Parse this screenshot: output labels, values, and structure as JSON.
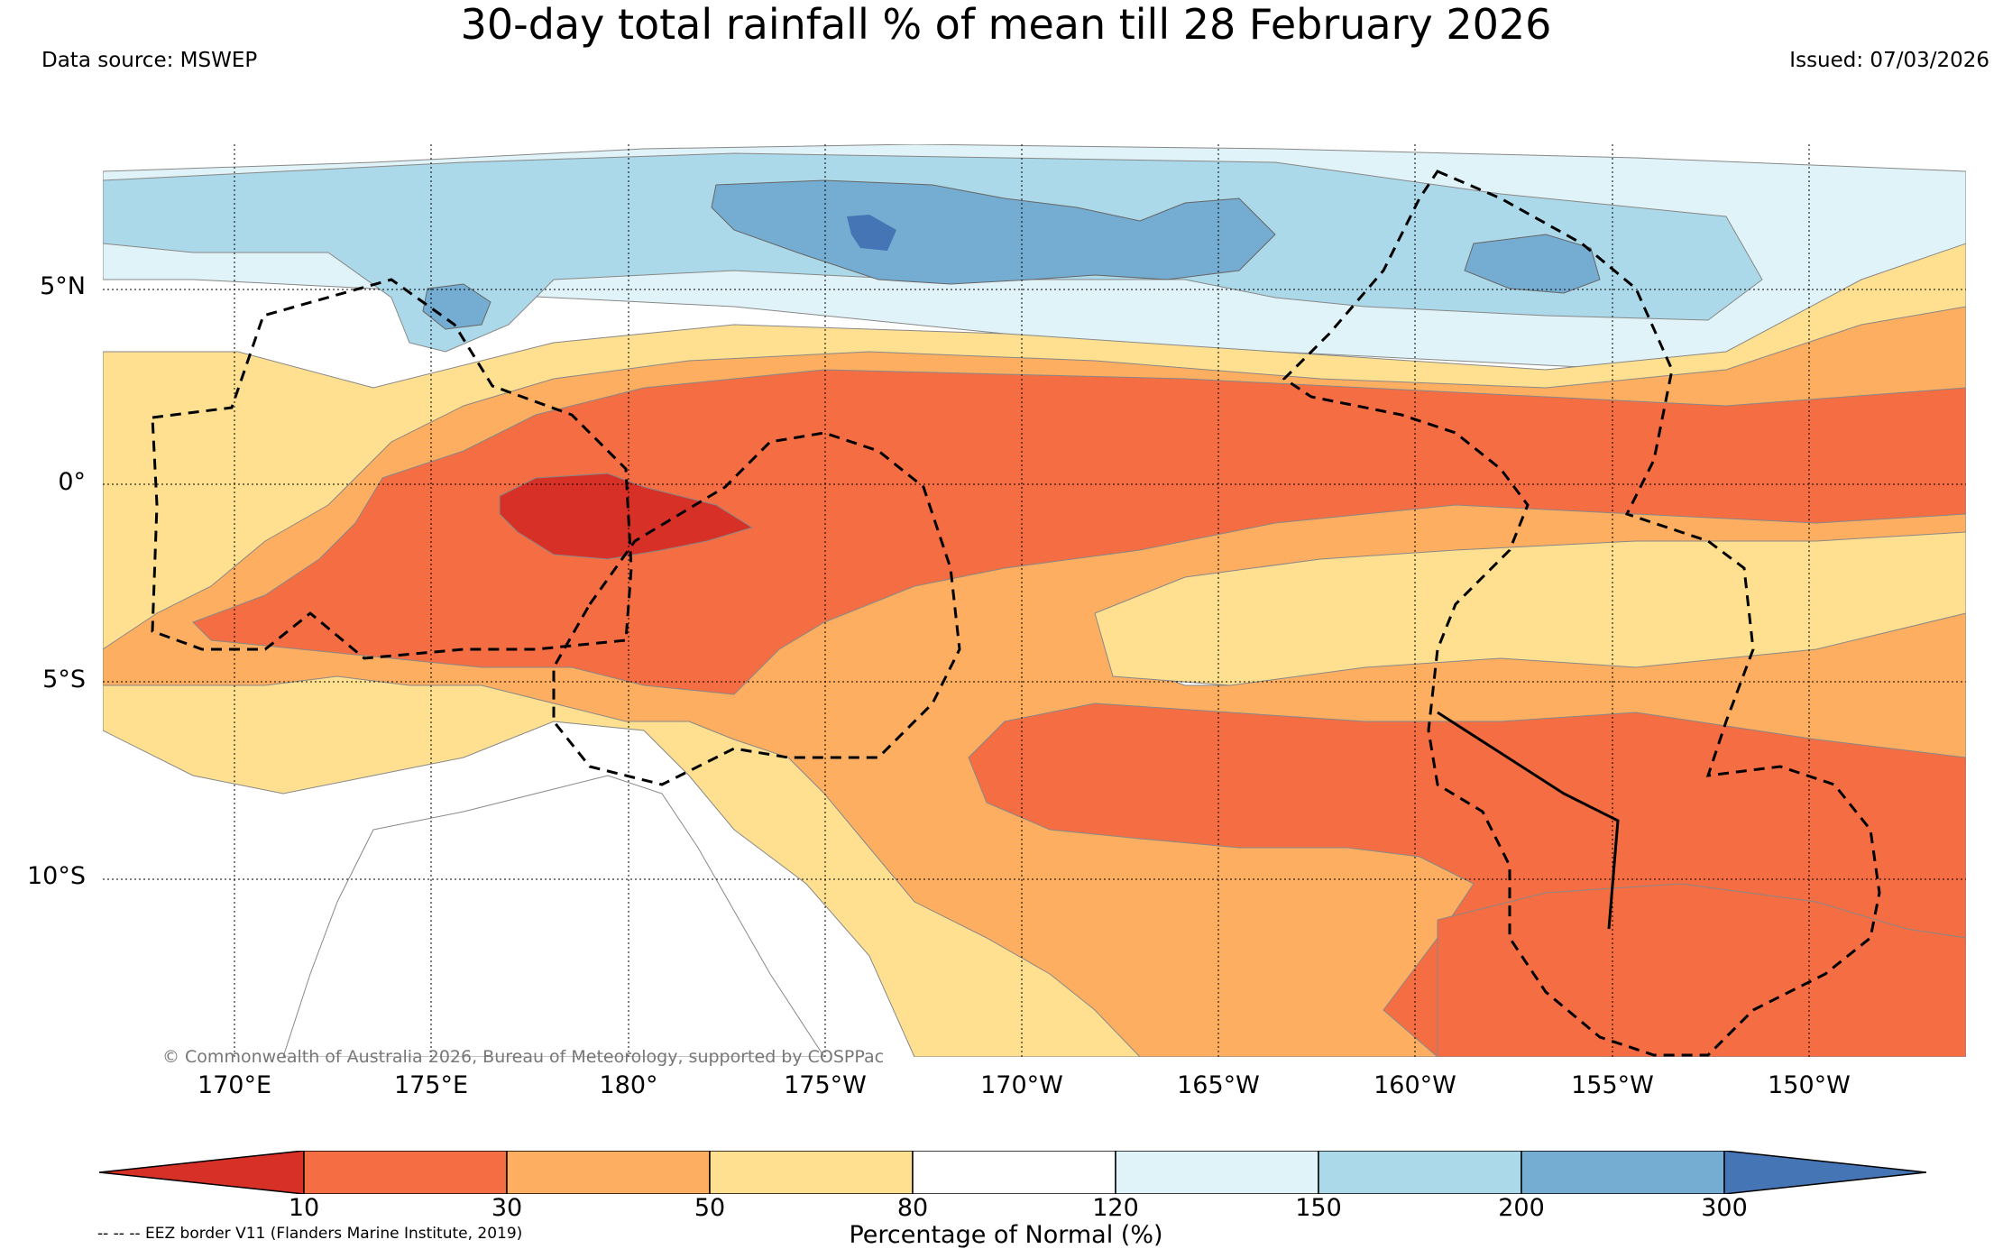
{
  "title": "30-day total rainfall % of mean till 28 February 2026",
  "data_source": "Data source: MSWEP",
  "issued": "Issued: 07/03/2026",
  "copyright": "© Commonwealth of Australia 2026, Bureau of Meteorology, supported by COSPPac",
  "lat_labels": [
    "5°N",
    "0°",
    "5°S",
    "10°S"
  ],
  "lon_labels": [
    "170°E",
    "175°E",
    "180°",
    "175°W",
    "170°W",
    "165°W",
    "160°W",
    "155°W",
    "150°W"
  ],
  "colorbar": {
    "title": "Percentage of Normal (%)",
    "ticks": [
      "10",
      "30",
      "50",
      "80",
      "120",
      "150",
      "200",
      "300"
    ],
    "colors": [
      "#d73027",
      "#f46d43",
      "#fdae61",
      "#fee090",
      "#ffffff",
      "#e0f3f8",
      "#abd9e9",
      "#74add1",
      "#4575b4"
    ]
  },
  "eez_note": "-- -- -- EEZ border V11 (Flanders Marine Institute, 2019)"
}
